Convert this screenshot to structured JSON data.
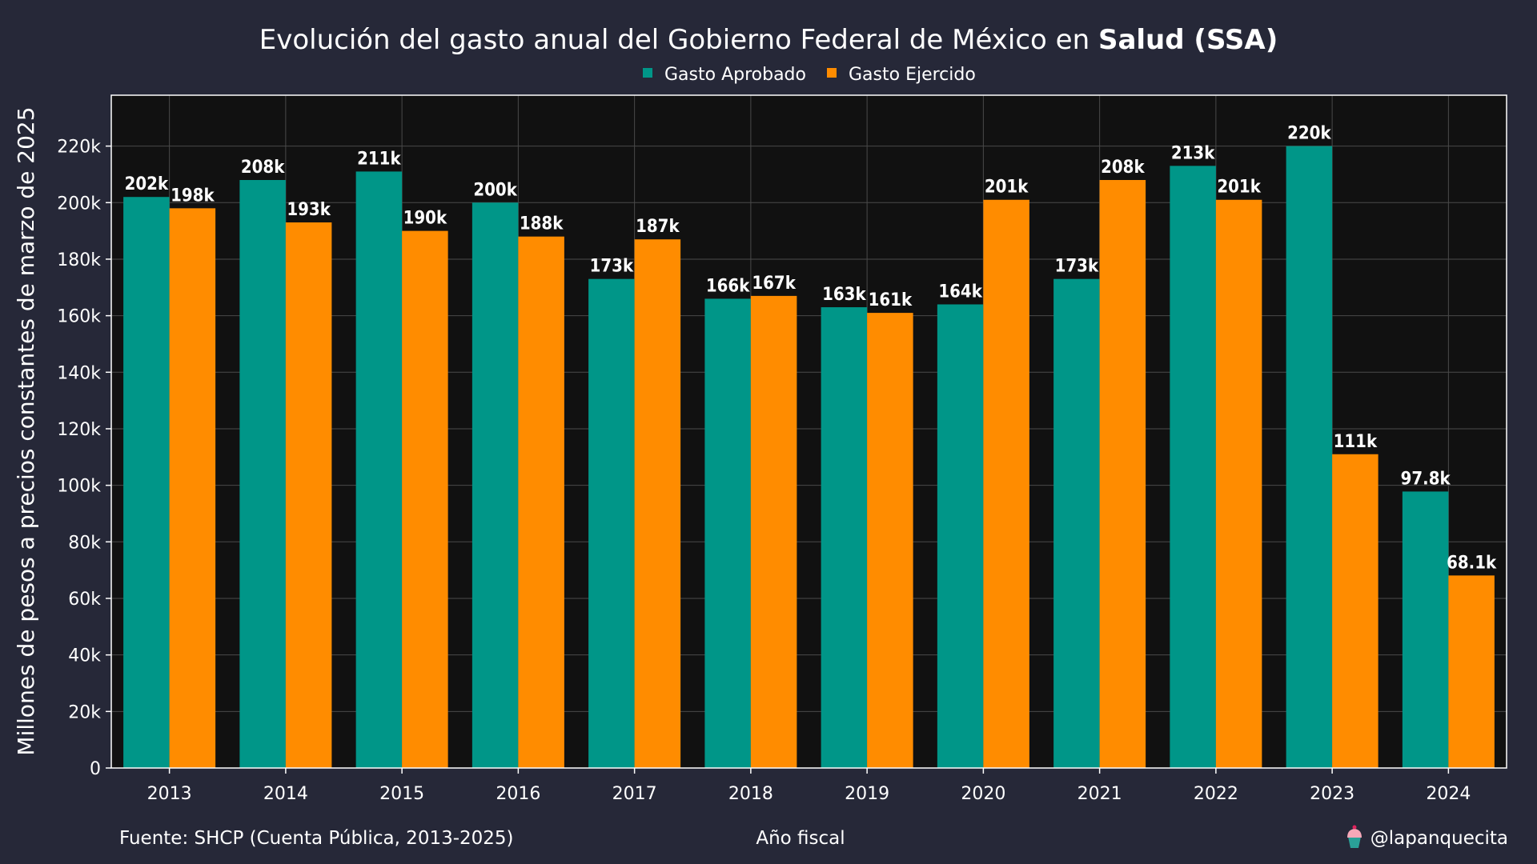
{
  "chart_data": {
    "type": "bar",
    "title_prefix": "Evolución del gasto anual del Gobierno Federal de México en ",
    "title_bold": "Salud (SSA)",
    "xlabel": "Año fiscal",
    "ylabel": "Millones de pesos a precios constantes de marzo de 2025",
    "categories": [
      "2013",
      "2014",
      "2015",
      "2016",
      "2017",
      "2018",
      "2019",
      "2020",
      "2021",
      "2022",
      "2023",
      "2024"
    ],
    "series": [
      {
        "name": "Gasto Aprobado",
        "color": "#009688",
        "values": [
          202,
          208,
          211,
          200,
          173,
          166,
          163,
          164,
          173,
          213,
          220,
          97.8
        ],
        "labels": [
          "202k",
          "208k",
          "211k",
          "200k",
          "173k",
          "166k",
          "163k",
          "164k",
          "173k",
          "213k",
          "220k",
          "97.8k"
        ]
      },
      {
        "name": "Gasto Ejercido",
        "color": "#ff8c00",
        "values": [
          198,
          193,
          190,
          188,
          187,
          167,
          161,
          201,
          208,
          201,
          111,
          68.1
        ],
        "labels": [
          "198k",
          "193k",
          "190k",
          "188k",
          "187k",
          "167k",
          "161k",
          "201k",
          "208k",
          "201k",
          "111k",
          "68.1k"
        ]
      }
    ],
    "ylim": [
      0,
      238
    ],
    "yticks": [
      0,
      20,
      40,
      60,
      80,
      100,
      120,
      140,
      160,
      180,
      200,
      220
    ],
    "ytick_labels": [
      "0",
      "20k",
      "40k",
      "60k",
      "80k",
      "100k",
      "120k",
      "140k",
      "160k",
      "180k",
      "200k",
      "220k"
    ],
    "grid": true,
    "legend_position": "top-center",
    "plot_background": "#111111",
    "page_background": "#262838"
  },
  "footer": {
    "source": "Fuente: SHCP (Cuenta Pública, 2013-2025)",
    "credit": "@lapanquecita",
    "credit_icon": "cupcake-icon"
  }
}
